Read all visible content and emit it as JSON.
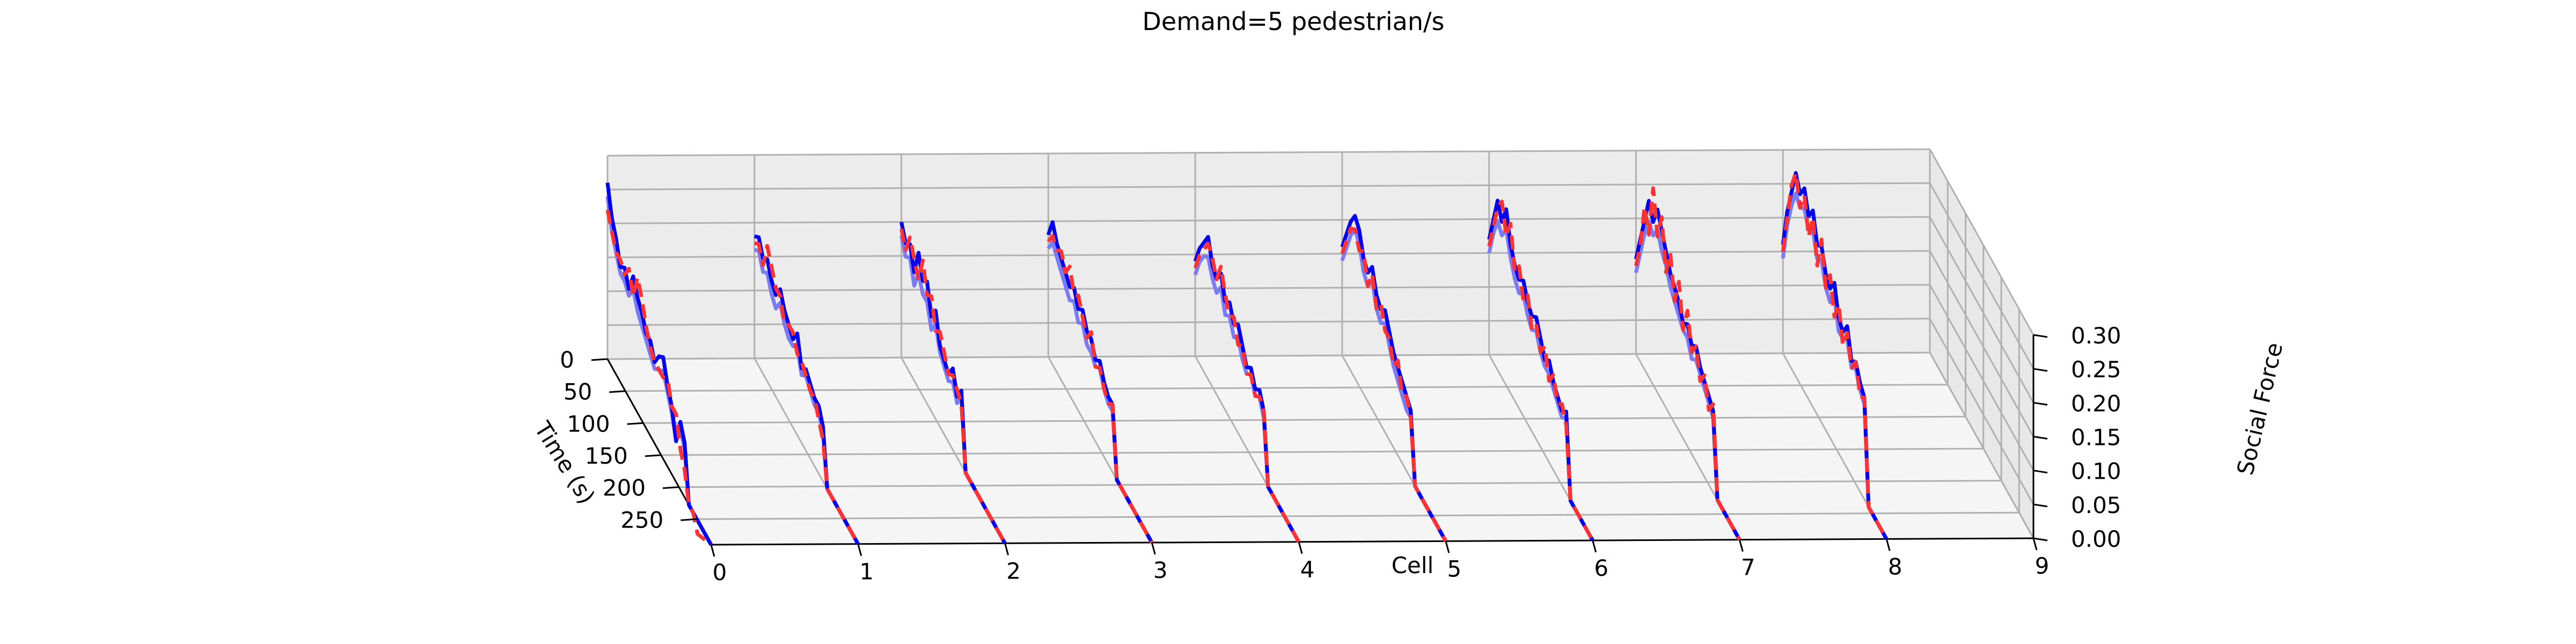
{
  "chart_data": {
    "type": "line",
    "title": "Demand=5 pedestrian/s",
    "xlabel": "Cell",
    "ylabel": "Time (s)",
    "zlabel": "Social Force",
    "x_ticks": [
      "0",
      "1",
      "2",
      "3",
      "4",
      "5",
      "6",
      "7",
      "8",
      "9"
    ],
    "y_ticks": [
      "0",
      "50",
      "100",
      "150",
      "200",
      "250"
    ],
    "z_ticks": [
      "0.00",
      "0.05",
      "0.10",
      "0.15",
      "0.20",
      "0.25",
      "0.30"
    ],
    "xlim": [
      0,
      9
    ],
    "ylim": [
      0,
      290
    ],
    "zlim": [
      0,
      0.3
    ],
    "grid": true,
    "series_colors": [
      "#0000ee",
      "#7b7bf5",
      "#ff3333"
    ],
    "series_styles": [
      "solid",
      "solid",
      "dashed"
    ],
    "time_points": [
      0,
      12,
      24,
      36,
      48,
      60,
      72,
      84,
      96,
      108,
      120,
      132,
      144,
      156,
      168,
      180,
      192,
      204,
      216,
      228,
      240,
      252
    ],
    "curves": [
      {
        "cell": 0,
        "series": [
          [
            0.26,
            0.22,
            0.2,
            0.17,
            0.18,
            0.16,
            0.19,
            0.17,
            0.16,
            0.14,
            0.14,
            0.12,
            0.14,
            0.15,
            0.12,
            0.1,
            0.06,
            0.1,
            0.08,
            0.0,
            0.0,
            0.0
          ],
          [
            0.24,
            0.2,
            0.18,
            0.16,
            0.16,
            0.15,
            0.17,
            0.15,
            0.14,
            0.13,
            0.12,
            0.11,
            0.12,
            0.13,
            0.11,
            0.09,
            0.06,
            0.09,
            0.07,
            0.0,
            0.0,
            0.0
          ],
          [
            0.22,
            0.2,
            0.18,
            0.18,
            0.17,
            0.19,
            0.16,
            0.2,
            0.18,
            0.15,
            0.13,
            0.12,
            0.12,
            0.12,
            0.13,
            0.1,
            0.1,
            0.06,
            0.04,
            0.0,
            0.0,
            -0.02
          ]
        ]
      },
      {
        "cell": 1,
        "series": [
          [
            0.18,
            0.19,
            0.17,
            0.18,
            0.16,
            0.15,
            0.17,
            0.15,
            0.14,
            0.13,
            0.15,
            0.11,
            0.12,
            0.11,
            0.1,
            0.1,
            0.08,
            0.0,
            0.0,
            0.0,
            0.0,
            0.0
          ],
          [
            0.16,
            0.17,
            0.15,
            0.16,
            0.14,
            0.13,
            0.15,
            0.13,
            0.12,
            0.12,
            0.13,
            0.1,
            0.11,
            0.1,
            0.09,
            0.09,
            0.07,
            0.0,
            0.0,
            0.0,
            0.0,
            0.0
          ],
          [
            0.17,
            0.18,
            0.16,
            0.2,
            0.18,
            0.16,
            0.16,
            0.13,
            0.14,
            0.14,
            0.12,
            0.12,
            0.11,
            0.1,
            0.1,
            0.08,
            0.06,
            0.0,
            0.0,
            0.0,
            0.0,
            0.0
          ]
        ]
      },
      {
        "cell": 2,
        "series": [
          [
            0.2,
            0.18,
            0.19,
            0.16,
            0.2,
            0.17,
            0.18,
            0.14,
            0.16,
            0.12,
            0.11,
            0.1,
            0.12,
            0.09,
            0.11,
            0.0,
            0.0,
            0.0,
            0.0,
            0.0,
            0.0,
            0.0
          ],
          [
            0.18,
            0.16,
            0.17,
            0.14,
            0.17,
            0.15,
            0.15,
            0.12,
            0.14,
            0.11,
            0.1,
            0.09,
            0.1,
            0.08,
            0.1,
            0.0,
            0.0,
            0.0,
            0.0,
            0.0,
            0.0,
            0.0
          ],
          [
            0.19,
            0.17,
            0.2,
            0.18,
            0.16,
            0.2,
            0.16,
            0.17,
            0.13,
            0.14,
            0.12,
            0.1,
            0.11,
            0.1,
            0.09,
            0.0,
            0.0,
            0.0,
            0.0,
            0.0,
            0.0,
            0.0
          ]
        ]
      },
      {
        "cell": 3,
        "series": [
          [
            0.18,
            0.21,
            0.19,
            0.18,
            0.17,
            0.16,
            0.17,
            0.15,
            0.16,
            0.14,
            0.14,
            0.12,
            0.13,
            0.11,
            0.1,
            0.1,
            0.0,
            0.0,
            0.0,
            0.0,
            0.0,
            0.0
          ],
          [
            0.16,
            0.18,
            0.17,
            0.16,
            0.15,
            0.14,
            0.15,
            0.13,
            0.14,
            0.12,
            0.12,
            0.11,
            0.12,
            0.1,
            0.09,
            0.09,
            0.0,
            0.0,
            0.0,
            0.0,
            0.0,
            0.0
          ],
          [
            0.17,
            0.19,
            0.18,
            0.19,
            0.17,
            0.19,
            0.16,
            0.17,
            0.15,
            0.13,
            0.15,
            0.11,
            0.12,
            0.1,
            0.09,
            0.1,
            0.0,
            0.0,
            0.0,
            0.0,
            0.0,
            0.0
          ]
        ]
      },
      {
        "cell": 4,
        "series": [
          [
            0.14,
            0.17,
            0.19,
            0.21,
            0.18,
            0.17,
            0.19,
            0.16,
            0.17,
            0.15,
            0.16,
            0.14,
            0.12,
            0.13,
            0.11,
            0.12,
            0.1,
            0.0,
            0.0,
            0.0,
            0.0,
            0.0
          ],
          [
            0.12,
            0.15,
            0.17,
            0.18,
            0.16,
            0.15,
            0.17,
            0.14,
            0.15,
            0.13,
            0.14,
            0.12,
            0.11,
            0.12,
            0.1,
            0.11,
            0.09,
            0.0,
            0.0,
            0.0,
            0.0,
            0.0
          ],
          [
            0.13,
            0.16,
            0.18,
            0.2,
            0.19,
            0.17,
            0.2,
            0.17,
            0.15,
            0.16,
            0.13,
            0.14,
            0.11,
            0.12,
            0.1,
            0.11,
            0.1,
            0.0,
            0.0,
            0.0,
            0.0,
            0.0
          ]
        ]
      },
      {
        "cell": 5,
        "series": [
          [
            0.16,
            0.19,
            0.22,
            0.24,
            0.23,
            0.2,
            0.19,
            0.21,
            0.18,
            0.17,
            0.18,
            0.16,
            0.14,
            0.13,
            0.12,
            0.11,
            0.1,
            0.0,
            0.0,
            0.0,
            0.0,
            0.0
          ],
          [
            0.14,
            0.17,
            0.2,
            0.22,
            0.21,
            0.18,
            0.17,
            0.19,
            0.16,
            0.15,
            0.16,
            0.14,
            0.12,
            0.11,
            0.1,
            0.09,
            0.09,
            0.0,
            0.0,
            0.0,
            0.0,
            0.0
          ],
          [
            0.15,
            0.18,
            0.21,
            0.22,
            0.2,
            0.21,
            0.17,
            0.2,
            0.16,
            0.18,
            0.15,
            0.15,
            0.12,
            0.14,
            0.1,
            0.11,
            0.09,
            0.0,
            0.0,
            0.0,
            0.0,
            0.0
          ]
        ]
      },
      {
        "cell": 6,
        "series": [
          [
            0.17,
            0.21,
            0.25,
            0.23,
            0.26,
            0.22,
            0.2,
            0.19,
            0.2,
            0.18,
            0.17,
            0.18,
            0.16,
            0.14,
            0.15,
            0.13,
            0.12,
            0.11,
            0.12,
            0.0,
            0.0,
            0.0
          ],
          [
            0.15,
            0.19,
            0.22,
            0.21,
            0.23,
            0.2,
            0.18,
            0.17,
            0.18,
            0.16,
            0.15,
            0.16,
            0.14,
            0.13,
            0.13,
            0.12,
            0.11,
            0.1,
            0.11,
            0.0,
            0.0,
            0.0
          ],
          [
            0.16,
            0.2,
            0.24,
            0.26,
            0.22,
            0.25,
            0.19,
            0.21,
            0.17,
            0.19,
            0.15,
            0.17,
            0.14,
            0.16,
            0.12,
            0.14,
            0.11,
            0.12,
            0.1,
            0.0,
            0.0,
            0.0
          ]
        ]
      },
      {
        "cell": 7,
        "series": [
          [
            0.14,
            0.18,
            0.22,
            0.26,
            0.24,
            0.27,
            0.25,
            0.23,
            0.21,
            0.2,
            0.19,
            0.17,
            0.18,
            0.16,
            0.17,
            0.15,
            0.14,
            0.13,
            0.12,
            0.0,
            0.0,
            0.0
          ],
          [
            0.12,
            0.16,
            0.2,
            0.23,
            0.22,
            0.24,
            0.22,
            0.21,
            0.19,
            0.18,
            0.17,
            0.16,
            0.16,
            0.14,
            0.15,
            0.14,
            0.13,
            0.12,
            0.11,
            0.0,
            0.0,
            0.0
          ],
          [
            0.13,
            0.17,
            0.24,
            0.21,
            0.29,
            0.23,
            0.27,
            0.2,
            0.24,
            0.18,
            0.22,
            0.16,
            0.2,
            0.15,
            0.17,
            0.13,
            0.15,
            0.11,
            0.13,
            0.0,
            0.0,
            0.0
          ]
        ]
      },
      {
        "cell": 8,
        "series": [
          [
            0.16,
            0.22,
            0.26,
            0.3,
            0.28,
            0.3,
            0.27,
            0.29,
            0.25,
            0.26,
            0.23,
            0.22,
            0.24,
            0.2,
            0.19,
            0.21,
            0.17,
            0.18,
            0.16,
            0.15,
            0.0,
            0.0
          ],
          [
            0.14,
            0.2,
            0.24,
            0.27,
            0.26,
            0.27,
            0.25,
            0.26,
            0.23,
            0.24,
            0.21,
            0.2,
            0.22,
            0.18,
            0.18,
            0.19,
            0.16,
            0.17,
            0.15,
            0.14,
            0.0,
            0.0
          ],
          [
            0.15,
            0.21,
            0.27,
            0.3,
            0.26,
            0.29,
            0.24,
            0.28,
            0.22,
            0.27,
            0.21,
            0.24,
            0.19,
            0.22,
            0.17,
            0.2,
            0.16,
            0.18,
            0.14,
            0.15,
            0.0,
            0.0
          ]
        ]
      }
    ]
  }
}
